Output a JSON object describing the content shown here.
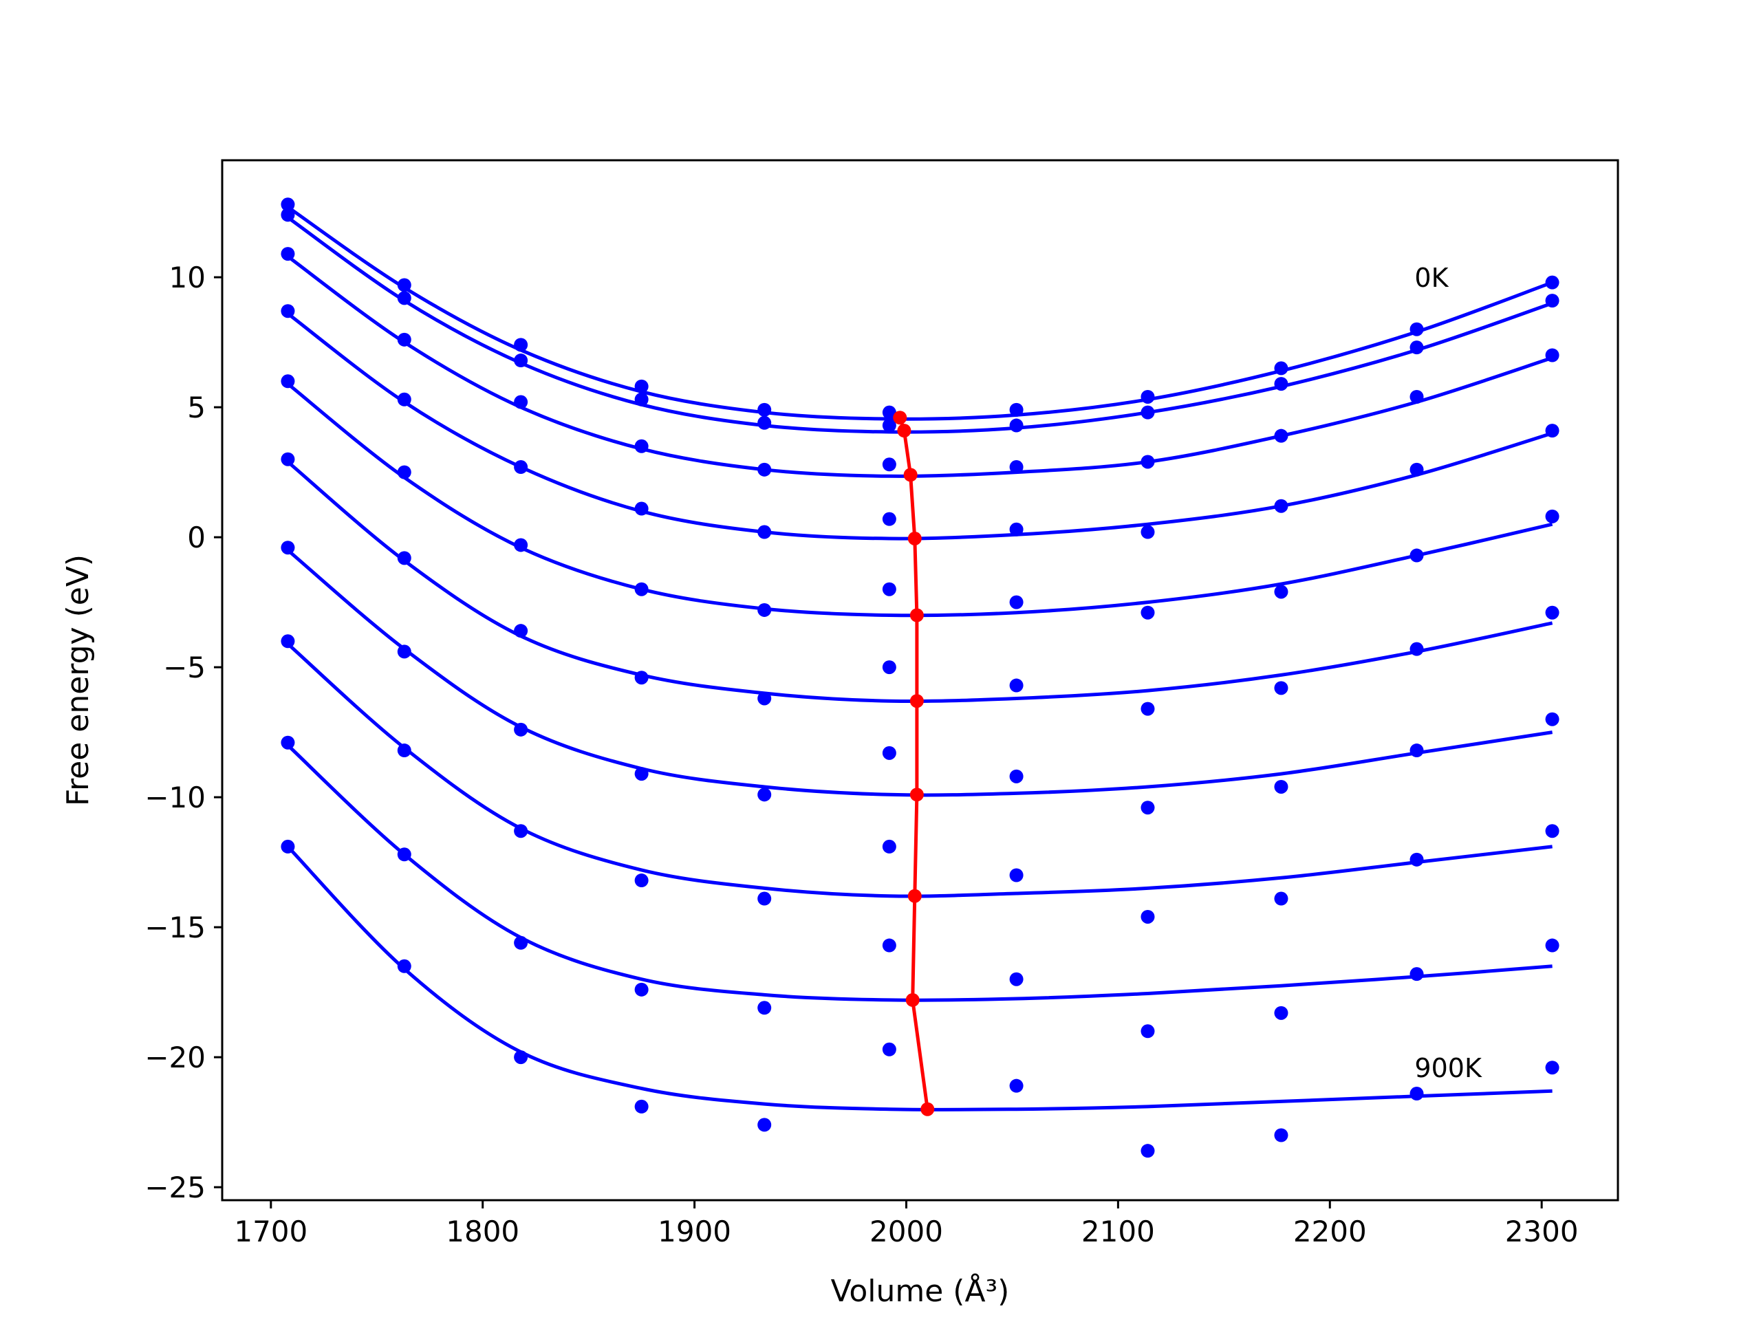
{
  "chart_data": {
    "type": "line",
    "title": "",
    "xlabel": "Volume (Å³)",
    "ylabel": "Free energy (eV)",
    "xlim": [
      1677,
      2336
    ],
    "ylim": [
      -25.5,
      14.5
    ],
    "xticks": [
      1700,
      1800,
      1900,
      2000,
      2100,
      2200,
      2300
    ],
    "yticks": [
      -25,
      -20,
      -15,
      -10,
      -5,
      0,
      5,
      10
    ],
    "grid": false,
    "legend": "none",
    "annotations": [
      {
        "text": "0K",
        "x": 2240,
        "y": 10.0
      },
      {
        "text": "900K",
        "x": 2240,
        "y": -20.4
      }
    ],
    "colors": {
      "series": "#0000ff",
      "equilibrium": "#ff0000",
      "axes": "#000000"
    },
    "x": [
      1708,
      1763,
      1818,
      1875,
      1933,
      1992,
      2052,
      2114,
      2177,
      2241,
      2305
    ],
    "series": [
      {
        "points": [
          12.8,
          9.7,
          7.4,
          5.8,
          4.9,
          4.8,
          4.9,
          5.4,
          6.5,
          8.0,
          9.8
        ],
        "fit": [
          12.7,
          9.6,
          7.2,
          5.6,
          4.8,
          4.55,
          4.7,
          5.3,
          6.4,
          7.9,
          9.8
        ]
      },
      {
        "points": [
          12.4,
          9.2,
          6.8,
          5.3,
          4.4,
          4.3,
          4.3,
          4.8,
          5.9,
          7.3,
          9.1
        ],
        "fit": [
          12.3,
          9.1,
          6.7,
          5.1,
          4.3,
          4.05,
          4.2,
          4.8,
          5.8,
          7.2,
          9.0
        ]
      },
      {
        "points": [
          10.9,
          7.6,
          5.2,
          3.5,
          2.6,
          2.8,
          2.7,
          2.9,
          3.9,
          5.4,
          7.0
        ],
        "fit": [
          10.8,
          7.5,
          5.0,
          3.4,
          2.6,
          2.35,
          2.5,
          2.9,
          3.9,
          5.2,
          6.9
        ]
      },
      {
        "points": [
          8.7,
          5.3,
          2.7,
          1.1,
          0.2,
          0.7,
          0.3,
          0.2,
          1.2,
          2.6,
          4.1
        ],
        "fit": [
          8.6,
          5.2,
          2.7,
          1.0,
          0.2,
          -0.05,
          0.1,
          0.5,
          1.2,
          2.4,
          4.0
        ]
      },
      {
        "points": [
          6.0,
          2.5,
          -0.3,
          -2.0,
          -2.8,
          -2.0,
          -2.5,
          -2.9,
          -2.1,
          -0.7,
          0.8
        ],
        "fit": [
          5.9,
          2.3,
          -0.4,
          -2.0,
          -2.75,
          -3.0,
          -2.9,
          -2.5,
          -1.8,
          -0.7,
          0.5
        ]
      },
      {
        "points": [
          3.0,
          -0.8,
          -3.6,
          -5.4,
          -6.2,
          -5.0,
          -5.7,
          -6.6,
          -5.8,
          -4.3,
          -2.9
        ],
        "fit": [
          2.9,
          -0.9,
          -3.8,
          -5.3,
          -6.0,
          -6.3,
          -6.2,
          -5.9,
          -5.3,
          -4.4,
          -3.3
        ]
      },
      {
        "points": [
          -0.4,
          -4.4,
          -7.4,
          -9.1,
          -9.9,
          -8.3,
          -9.2,
          -10.4,
          -9.6,
          -8.2,
          -7.0
        ],
        "fit": [
          -0.5,
          -4.3,
          -7.3,
          -8.9,
          -9.6,
          -9.9,
          -9.85,
          -9.6,
          -9.1,
          -8.3,
          -7.5
        ]
      },
      {
        "points": [
          -4.0,
          -8.2,
          -11.3,
          -13.2,
          -13.9,
          -11.9,
          -13.0,
          -14.6,
          -13.9,
          -12.4,
          -11.3
        ],
        "fit": [
          -4.1,
          -8.1,
          -11.2,
          -12.8,
          -13.5,
          -13.8,
          -13.7,
          -13.5,
          -13.1,
          -12.5,
          -11.9
        ]
      },
      {
        "points": [
          -7.9,
          -12.2,
          -15.6,
          -17.4,
          -18.1,
          -15.7,
          -17.0,
          -19.0,
          -18.3,
          -16.8,
          -15.7
        ],
        "fit": [
          -8.0,
          -12.2,
          -15.4,
          -17.0,
          -17.6,
          -17.8,
          -17.75,
          -17.55,
          -17.25,
          -16.9,
          -16.5
        ]
      },
      {
        "points": [
          -11.9,
          -16.5,
          -20.0,
          -21.9,
          -22.6,
          -19.7,
          -21.1,
          -23.6,
          -23.0,
          -21.4,
          -20.4
        ],
        "fit": [
          -11.9,
          -16.6,
          -19.8,
          -21.2,
          -21.8,
          -22.0,
          -22.0,
          -21.9,
          -21.7,
          -21.5,
          -21.3
        ]
      }
    ],
    "equilibrium_line": {
      "x": [
        1997,
        1999,
        2002,
        2004,
        2005,
        2005,
        2005,
        2004,
        2003,
        2010
      ],
      "y": [
        4.6,
        4.1,
        2.4,
        -0.05,
        -3.0,
        -6.3,
        -9.9,
        -13.8,
        -17.8,
        -22.0
      ]
    }
  }
}
